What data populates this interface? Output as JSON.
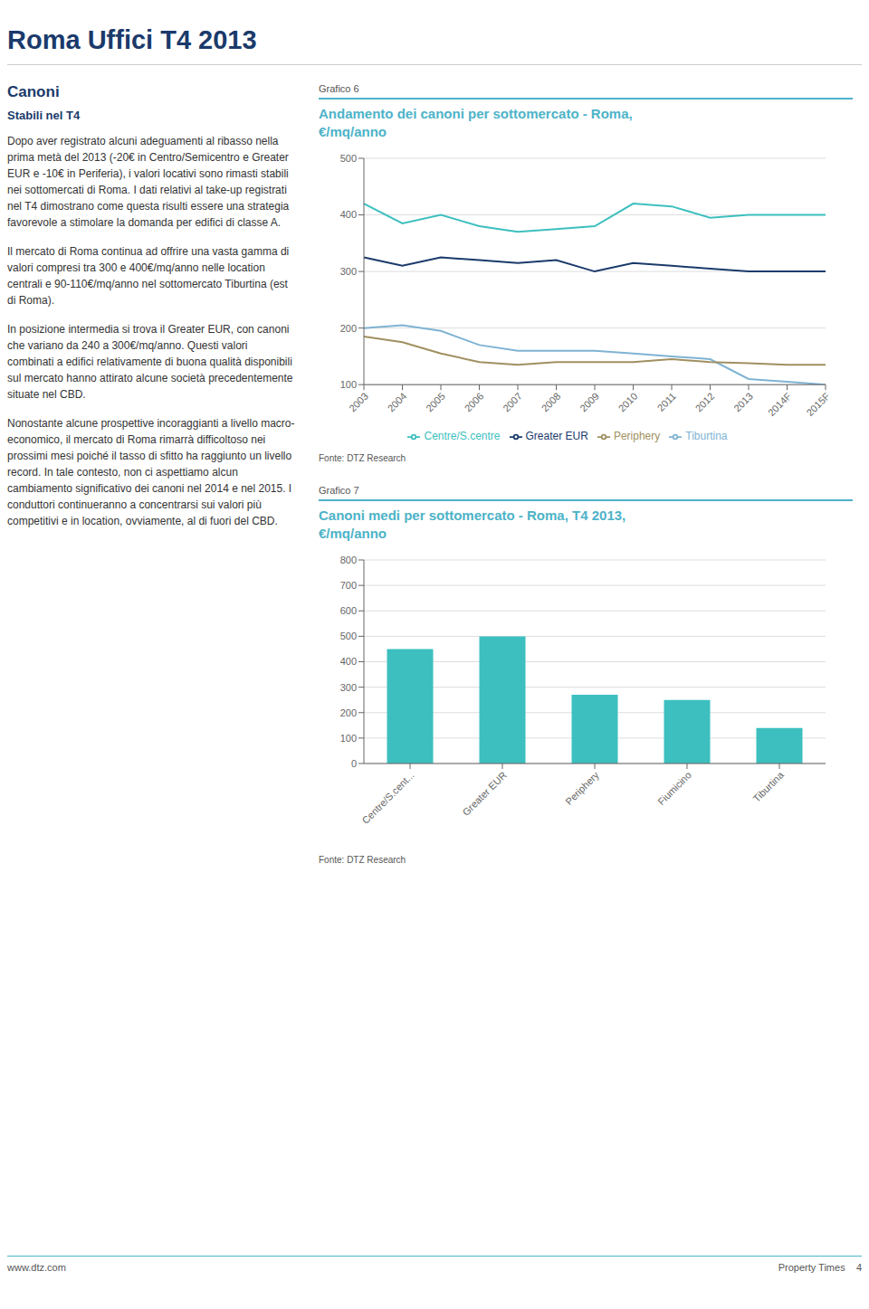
{
  "title": "Roma Uffici T4 2013",
  "annotations": [
    "Canoni",
    "Stabili nel T4",
    "Dopo aver registrato alcuni adeguamenti al ribasso nella prima metà del 2013 (-20€ in Centro/Semicentro e Greater EUR e -10€ in Periferia), i valori locativi sono rimasti stabili nei sottomercati di Roma. I dati relativi al take-up registrati nel T4 dimostrano come questa risulti essere una strategia favorevole a stimolare la domanda per edifici di classe A.",
    "Il mercato di Roma continua ad offrire una vasta gamma di valori compresi tra 300 e 400€/mq/anno nelle location centrali e 90-110€/mq/anno nel sottomercato Tiburtina (est di Roma).",
    "In posizione intermedia si trova il Greater EUR, con canoni che variano da 240 a 300€/mq/anno. Questi valori combinati a edifici relativamente di buona qualità disponibili sul mercato hanno attirato alcune società precedentemente situate nel CBD.",
    "Nonostante alcune prospettive incoraggianti a livello macro-economico, il mercato di Roma rimarrà difficoltoso nei prossimi mesi poiché il tasso di sfitto ha raggiunto un livello record. In tale contesto, non ci aspettiamo alcun cambiamento significativo dei canoni nel 2014 e nel 2015. I conduttori continueranno a concentrarsi sui valori più competitivi e in location, ovviamente, al di fuori del CBD.",
    "www.dtz.com",
    "Property Times    4"
  ],
  "chart_data": [
    {
      "type": "line",
      "title": "Andamento dei canoni per sottomercato - Roma,\n€/mq/anno",
      "annotations": [
        "Grafico 6",
        "Fonte: DTZ Research"
      ],
      "categories": [
        "2003",
        "2004",
        "2005",
        "2006",
        "2007",
        "2008",
        "2009",
        "2010",
        "2011",
        "2012",
        "2013",
        "2014F",
        "2015F"
      ],
      "series": [
        {
          "name": "Centre/S.centre",
          "color": "#3dbfbf",
          "values": [
            420,
            385,
            400,
            380,
            370,
            375,
            380,
            420,
            415,
            395,
            400,
            400,
            400
          ]
        },
        {
          "name": "Greater EUR",
          "color": "#1a3a6b",
          "values": [
            325,
            310,
            325,
            320,
            315,
            320,
            300,
            315,
            310,
            305,
            300,
            300,
            300
          ]
        },
        {
          "name": "Tiburtina",
          "color": "#7fb3d3",
          "values": [
            200,
            205,
            195,
            170,
            160,
            160,
            160,
            155,
            150,
            145,
            110,
            105,
            100
          ]
        },
        {
          "name": "Periphery",
          "color": "#a09060",
          "values": [
            185,
            175,
            155,
            140,
            135,
            140,
            140,
            140,
            145,
            140,
            138,
            135,
            135
          ]
        }
      ],
      "ylim": [
        100,
        500
      ],
      "yticks": [
        100,
        200,
        300,
        400,
        500
      ],
      "grid": true,
      "legend": "bottom"
    },
    {
      "type": "bar",
      "title": "Canoni medi per sottomercato - Roma, T4 2013,\n€/mq/anno",
      "annotations": [
        "Grafico 7",
        "Fonte: DTZ Research"
      ],
      "categories": [
        "Centre/S.cent...",
        "Greater EUR",
        "Periphery",
        "Fiumicino",
        "Tiburtina"
      ],
      "values": [
        450,
        500,
        270,
        250,
        140
      ],
      "color": "#3dbfbf",
      "ylim": [
        0,
        800
      ],
      "yticks": [
        0,
        100,
        200,
        300,
        400,
        500,
        600,
        700,
        800
      ],
      "grid": true
    }
  ]
}
